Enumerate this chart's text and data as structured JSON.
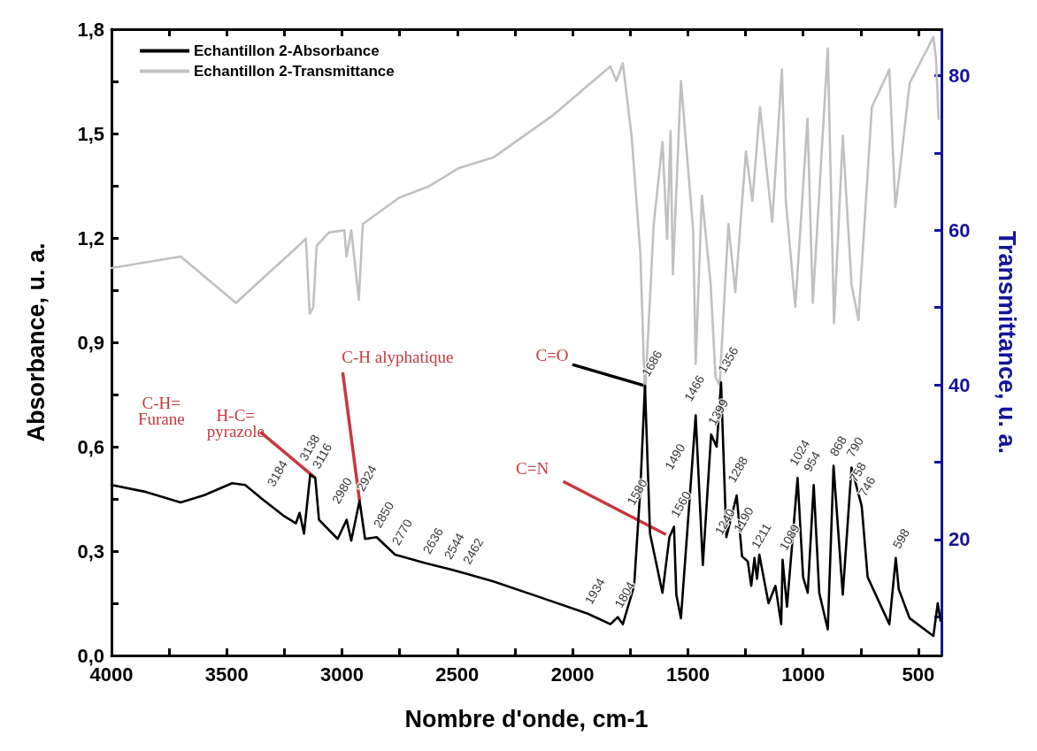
{
  "chart_data": {
    "type": "line",
    "xlabel": "Nombre d'onde, cm-1",
    "ylabel": "Absorbance, u. a.",
    "y2label": "Transmittance, u. a.",
    "xlim": [
      4000,
      400
    ],
    "xticks": [
      4000,
      {
        "value": 3750,
        "label": null
      },
      3500,
      {
        "value": 3250,
        "label": null
      },
      3000,
      {
        "value": 2750,
        "label": null
      },
      2500,
      {
        "value": 2250,
        "label": null
      },
      2000,
      {
        "value": 1750,
        "label": null
      },
      1500,
      {
        "value": 1250,
        "label": null
      },
      1000,
      {
        "value": 750,
        "label": null
      },
      500
    ],
    "ylim": [
      0,
      1.8
    ],
    "yticks": [
      {
        "value": 0,
        "label": "0,0"
      },
      {
        "value": 0.15,
        "label": null
      },
      {
        "value": 0.3,
        "label": "0,3"
      },
      {
        "value": 0.45,
        "label": null
      },
      {
        "value": 0.6,
        "label": "0,6"
      },
      {
        "value": 0.75,
        "label": null
      },
      {
        "value": 0.9,
        "label": "0,9"
      },
      {
        "value": 1.05,
        "label": null
      },
      {
        "value": 1.2,
        "label": "1,2"
      },
      {
        "value": 1.35,
        "label": null
      },
      {
        "value": 1.5,
        "label": "1,5"
      },
      {
        "value": 1.65,
        "label": null
      },
      {
        "value": 1.8,
        "label": "1,8"
      }
    ],
    "y2lim": [
      5,
      86
    ],
    "y2ticks": [
      {
        "value": 10,
        "label": null
      },
      20,
      {
        "value": 30,
        "label": null
      },
      40,
      {
        "value": 50,
        "label": null
      },
      60,
      {
        "value": 70,
        "label": null
      },
      80
    ],
    "legend": "top left",
    "grid": false,
    "marker": "none",
    "line_style": "solid",
    "series": [
      {
        "name": "Echantillon 2-Absorbance",
        "color": "#000000",
        "x": [
          4000,
          3850,
          3700,
          3600,
          3477,
          3420,
          3347,
          3250,
          3200,
          3184,
          3165,
          3138,
          3116,
          3100,
          3019,
          2980,
          2960,
          2924,
          2900,
          2850,
          2770,
          2636,
          2544,
          2462,
          2344,
          2153,
          1934,
          1836,
          1804,
          1782,
          1733,
          1706,
          1686,
          1664,
          1610,
          1580,
          1560,
          1550,
          1530,
          1490,
          1466,
          1435,
          1399,
          1375,
          1356,
          1333,
          1288,
          1265,
          1240,
          1225,
          1211,
          1200,
          1190,
          1150,
          1120,
          1095,
          1089,
          1070,
          1024,
          1000,
          980,
          954,
          930,
          893,
          868,
          828,
          790,
          758,
          746,
          720,
          626,
          598,
          585,
          538,
          435,
          416,
          404
        ],
        "values": [
          0.49,
          0.47,
          0.44,
          0.46,
          0.495,
          0.49,
          0.45,
          0.4,
          0.38,
          0.41,
          0.35,
          0.52,
          0.51,
          0.39,
          0.335,
          0.39,
          0.33,
          0.445,
          0.335,
          0.34,
          0.29,
          0.265,
          0.25,
          0.235,
          0.213,
          0.17,
          0.12,
          0.09,
          0.11,
          0.09,
          0.2,
          0.48,
          0.775,
          0.35,
          0.18,
          0.34,
          0.37,
          0.175,
          0.107,
          0.47,
          0.69,
          0.26,
          0.635,
          0.6,
          0.785,
          0.34,
          0.46,
          0.285,
          0.27,
          0.2,
          0.28,
          0.22,
          0.29,
          0.15,
          0.2,
          0.09,
          0.275,
          0.14,
          0.51,
          0.225,
          0.18,
          0.49,
          0.18,
          0.075,
          0.545,
          0.175,
          0.54,
          0.46,
          0.43,
          0.225,
          0.09,
          0.28,
          0.19,
          0.107,
          0.056,
          0.15,
          0.1
        ]
      },
      {
        "name": "Echantillon 2-Transmittance",
        "color": "#c0c0c0",
        "axis": "y2",
        "x": [
          4000,
          3700,
          3460,
          3336,
          3210,
          3157,
          3140,
          3125,
          3110,
          3057,
          2990,
          2981,
          2960,
          2927,
          2910,
          2752,
          2622,
          2496,
          2344,
          2088,
          1836,
          1810,
          1782,
          1744,
          1706,
          1686,
          1648,
          1610,
          1590,
          1575,
          1565,
          1530,
          1477,
          1466,
          1439,
          1401,
          1380,
          1362,
          1324,
          1294,
          1248,
          1220,
          1187,
          1134,
          1092,
          1075,
          1034,
          981,
          958,
          893,
          866,
          828,
          790,
          760,
          702,
          626,
          600,
          585,
          538,
          435,
          424,
          412
        ],
        "values": [
          55.1,
          56.6,
          50.6,
          54,
          57.4,
          58.9,
          49.2,
          50,
          58,
          59.7,
          60,
          56.6,
          60,
          51,
          60.8,
          64.2,
          65.7,
          68,
          69.4,
          74.8,
          81.2,
          79.3,
          81.6,
          72.2,
          57,
          38.4,
          60.8,
          71.4,
          58.9,
          72.8,
          54.3,
          79.3,
          60,
          42.7,
          64.5,
          53,
          41,
          40,
          60.8,
          52,
          70.2,
          63.8,
          75.9,
          61.1,
          80.8,
          63.8,
          50.1,
          74.4,
          50.6,
          83.5,
          48,
          72.2,
          53,
          48.4,
          75.9,
          80.8,
          63,
          66.5,
          79,
          85,
          82.4,
          74.4
        ]
      }
    ],
    "annotations": [
      "C-H=\nFurane",
      {
        "text": "H-C=\npyrazole",
        "x": 3116,
        "y": 0.51
      },
      {
        "text": "C-H alyphatique",
        "x": 2924,
        "y": 0.445
      },
      {
        "text": "C=O",
        "x": 1686,
        "y": 0.775
      },
      {
        "text": "C=N",
        "x": 1580,
        "y": 0.34
      },
      {
        "text": "3184",
        "x": 3184,
        "y": 0.41
      },
      {
        "text": "3138",
        "x": 3138,
        "y": 0.52
      },
      {
        "text": "3116",
        "x": 3116,
        "y": 0.51
      },
      {
        "text": "2980",
        "x": 2980,
        "y": 0.39
      },
      {
        "text": "2924",
        "x": 2924,
        "y": 0.445
      },
      {
        "text": "2850",
        "x": 2850,
        "y": 0.34
      },
      {
        "text": "2770",
        "x": 2770,
        "y": 0.29
      },
      {
        "text": "2636",
        "x": 2636,
        "y": 0.265
      },
      {
        "text": "2544",
        "x": 2544,
        "y": 0.25
      },
      {
        "text": "2462",
        "x": 2462,
        "y": 0.235
      },
      {
        "text": "1934",
        "x": 1934,
        "y": 0.12
      },
      {
        "text": "1804",
        "x": 1804,
        "y": 0.11
      },
      {
        "text": "1686",
        "x": 1686,
        "y": 0.775
      },
      {
        "text": "1580",
        "x": 1580,
        "y": 0.34
      },
      {
        "text": "1560",
        "x": 1560,
        "y": 0.37
      },
      {
        "text": "1490",
        "x": 1490,
        "y": 0.47
      },
      {
        "text": "1466",
        "x": 1466,
        "y": 0.69
      },
      {
        "text": "1399",
        "x": 1399,
        "y": 0.635
      },
      {
        "text": "1356",
        "x": 1356,
        "y": 0.785
      },
      {
        "text": "1288",
        "x": 1288,
        "y": 0.46
      },
      {
        "text": "1240",
        "x": 1240,
        "y": 0.27
      },
      {
        "text": "1211",
        "x": 1211,
        "y": 0.28
      },
      {
        "text": "1190",
        "x": 1190,
        "y": 0.29
      },
      {
        "text": "1089",
        "x": 1089,
        "y": 0.275
      },
      {
        "text": "1024",
        "x": 1024,
        "y": 0.51
      },
      {
        "text": "954",
        "x": 954,
        "y": 0.49
      },
      {
        "text": "868",
        "x": 868,
        "y": 0.545
      },
      {
        "text": "790",
        "x": 790,
        "y": 0.54
      },
      {
        "text": "758",
        "x": 758,
        "y": 0.46
      },
      {
        "text": "746",
        "x": 746,
        "y": 0.43
      },
      {
        "text": "598",
        "x": 598,
        "y": 0.28
      }
    ]
  }
}
